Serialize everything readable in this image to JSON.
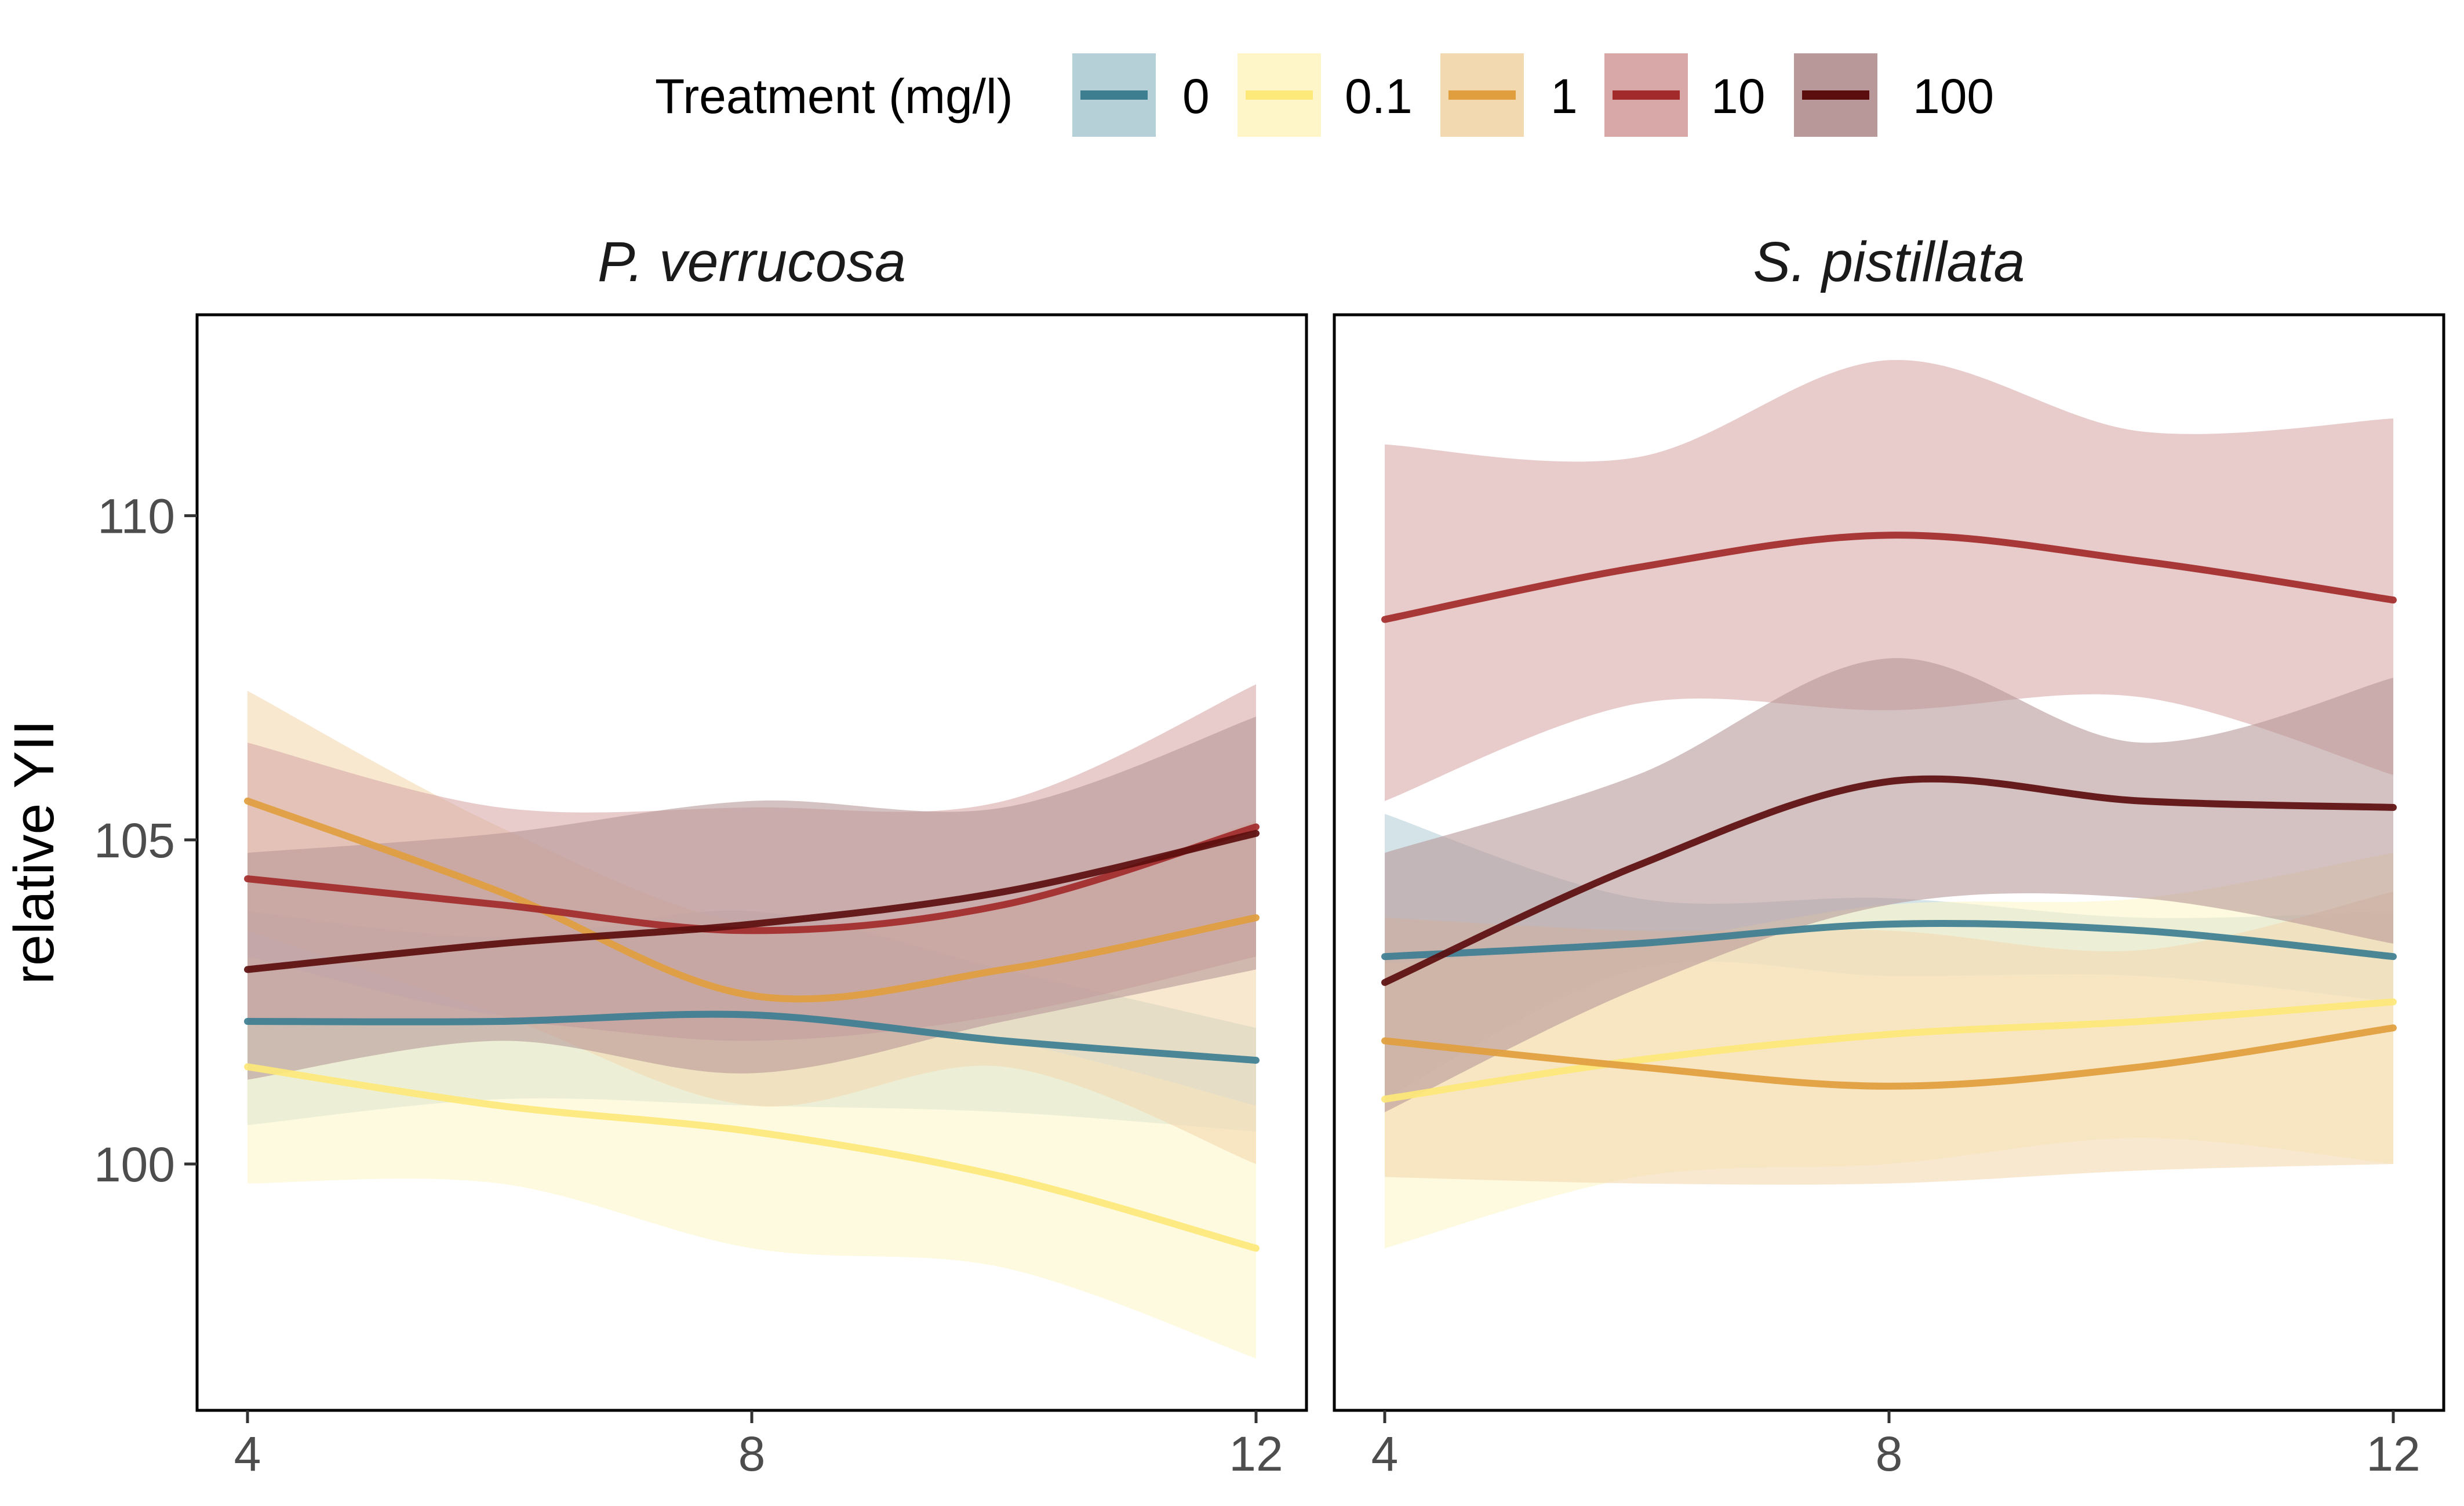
{
  "legend": {
    "title": "Treatment (mg/l)",
    "items": [
      {
        "label": "0",
        "color": "#3D7E91",
        "fill": "#B6D0D8"
      },
      {
        "label": "0.1",
        "color": "#FDE87A",
        "fill": "#FEF6C9"
      },
      {
        "label": "1",
        "color": "#E19E3E",
        "fill": "#F3D9B0"
      },
      {
        "label": "10",
        "color": "#A22A2A",
        "fill": "#D8A8A8"
      },
      {
        "label": "100",
        "color": "#5C0E0E",
        "fill": "#B89898"
      }
    ]
  },
  "chart_data": {
    "type": "line",
    "y_axis_title": "relative YII",
    "x_ticks": [
      4,
      8,
      12
    ],
    "y_ticks": [
      100,
      105,
      110
    ],
    "xlim": [
      3.6,
      12.4
    ],
    "ylim": [
      96.2,
      113.1
    ],
    "ribbon_opacity": 0.6,
    "panels": [
      {
        "title": "P. verrucosa",
        "series": [
          {
            "name": "0",
            "x": [
              4,
              6,
              8,
              10,
              12
            ],
            "y": [
              102.2,
              102.2,
              102.3,
              101.9,
              101.6
            ],
            "lower": [
              100.6,
              101.0,
              100.9,
              100.8,
              100.5
            ],
            "upper": [
              103.9,
              103.5,
              103.9,
              103.0,
              102.1
            ]
          },
          {
            "name": "0.1",
            "x": [
              4,
              6,
              8,
              10,
              12
            ],
            "y": [
              101.5,
              100.9,
              100.5,
              99.8,
              98.7
            ],
            "lower": [
              99.7,
              99.7,
              98.7,
              98.4,
              97.0
            ],
            "upper": [
              103.2,
              102.3,
              102.3,
              101.9,
              100.9
            ]
          },
          {
            "name": "1",
            "x": [
              4,
              6,
              8,
              10,
              12
            ],
            "y": [
              105.6,
              104.2,
              102.6,
              103.0,
              103.8
            ],
            "lower": [
              103.6,
              102.3,
              100.9,
              101.5,
              100.0
            ],
            "upper": [
              107.3,
              105.2,
              103.7,
              104.0,
              105.3
            ]
          },
          {
            "name": "10",
            "x": [
              4,
              6,
              8,
              10,
              12
            ],
            "y": [
              104.4,
              104.0,
              103.6,
              104.0,
              105.2
            ],
            "lower": [
              102.2,
              102.2,
              101.9,
              102.3,
              103.2
            ],
            "upper": [
              106.5,
              105.5,
              105.5,
              105.6,
              107.4
            ]
          },
          {
            "name": "100",
            "x": [
              4,
              6,
              8,
              10,
              12
            ],
            "y": [
              103.0,
              103.4,
              103.7,
              104.2,
              105.1
            ],
            "lower": [
              101.3,
              101.9,
              101.4,
              102.2,
              103.0
            ],
            "upper": [
              104.8,
              105.1,
              105.6,
              105.5,
              106.9
            ]
          }
        ]
      },
      {
        "title": "S. pistillata",
        "series": [
          {
            "name": "0",
            "x": [
              4,
              6,
              8,
              10,
              12
            ],
            "y": [
              103.2,
              103.4,
              103.7,
              103.6,
              103.2
            ],
            "lower": [
              101.0,
              103.0,
              102.9,
              102.9,
              102.5
            ],
            "upper": [
              105.4,
              104.1,
              104.1,
              103.8,
              103.9
            ]
          },
          {
            "name": "0.1",
            "x": [
              4,
              6,
              8,
              10,
              12
            ],
            "y": [
              101.0,
              101.6,
              102.0,
              102.2,
              102.5
            ],
            "lower": [
              98.7,
              99.8,
              100.0,
              100.4,
              100.0
            ],
            "upper": [
              103.1,
              103.4,
              104.0,
              104.1,
              104.8
            ]
          },
          {
            "name": "1",
            "x": [
              4,
              6,
              8,
              10,
              12
            ],
            "y": [
              101.9,
              101.5,
              101.2,
              101.5,
              102.1
            ],
            "lower": [
              99.8,
              99.7,
              99.7,
              99.9,
              100.0
            ],
            "upper": [
              103.8,
              103.6,
              103.6,
              103.3,
              104.2
            ]
          },
          {
            "name": "10",
            "x": [
              4,
              6,
              8,
              10,
              12
            ],
            "y": [
              108.4,
              109.2,
              109.7,
              109.3,
              108.7
            ],
            "lower": [
              105.6,
              107.1,
              107.0,
              107.2,
              106.0
            ],
            "upper": [
              111.1,
              110.9,
              112.4,
              111.3,
              111.5
            ]
          },
          {
            "name": "100",
            "x": [
              4,
              6,
              8,
              10,
              12
            ],
            "y": [
              102.8,
              104.6,
              105.9,
              105.6,
              105.5
            ],
            "lower": [
              100.8,
              102.7,
              104.0,
              104.1,
              103.4
            ],
            "upper": [
              104.8,
              106.0,
              107.8,
              106.5,
              107.5
            ]
          }
        ]
      }
    ]
  }
}
